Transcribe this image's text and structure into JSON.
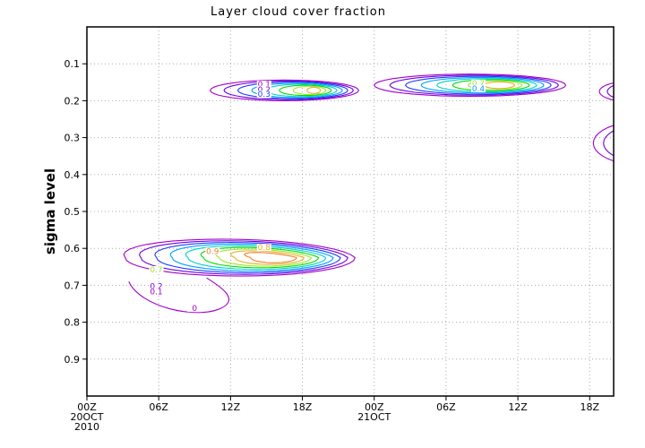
{
  "chart_data": {
    "type": "contour",
    "title": "Layer cloud cover fraction",
    "xlabel": "",
    "ylabel": "sigma level",
    "x_ticks": [
      {
        "hour": 0,
        "label": "00Z",
        "sub": [
          "20OCT",
          "2010"
        ]
      },
      {
        "hour": 6,
        "label": "06Z",
        "sub": []
      },
      {
        "hour": 12,
        "label": "12Z",
        "sub": []
      },
      {
        "hour": 18,
        "label": "18Z",
        "sub": []
      },
      {
        "hour": 24,
        "label": "00Z",
        "sub": [
          "21OCT"
        ]
      },
      {
        "hour": 30,
        "label": "06Z",
        "sub": []
      },
      {
        "hour": 36,
        "label": "12Z",
        "sub": []
      },
      {
        "hour": 42,
        "label": "18Z",
        "sub": []
      }
    ],
    "xlim_hours": [
      0,
      44
    ],
    "y_ticks": [
      "0.1",
      "0.2",
      "0.3",
      "0.4",
      "0.5",
      "0.6",
      "0.7",
      "0.8",
      "0.9"
    ],
    "ylim": [
      1.0,
      0.0
    ],
    "grid": true,
    "contour_levels": [
      0.1,
      0.2,
      0.3,
      0.4,
      0.5,
      0.6,
      0.7,
      0.8,
      0.9
    ],
    "level_colors": [
      "#a000c8",
      "#6e00dc",
      "#1e3cff",
      "#00a0ff",
      "#00d2c8",
      "#00dc00",
      "#a0e632",
      "#e6af2d",
      "#f0822a"
    ],
    "contour_labels": [
      {
        "text": "0.1",
        "hour": 14.8,
        "sigma": 0.158,
        "color": "#a000c8"
      },
      {
        "text": "0.2",
        "hour": 14.8,
        "sigma": 0.172,
        "color": "#6e00dc"
      },
      {
        "text": "0.3",
        "hour": 14.8,
        "sigma": 0.185,
        "color": "#1e3cff"
      },
      {
        "text": "0.7",
        "hour": 32.7,
        "sigma": 0.155,
        "color": "#a0e632"
      },
      {
        "text": "0.4",
        "hour": 32.7,
        "sigma": 0.17,
        "color": "#00a0ff"
      },
      {
        "text": "0.9",
        "hour": 10.5,
        "sigma": 0.61,
        "color": "#f0822a"
      },
      {
        "text": "0.8",
        "hour": 14.8,
        "sigma": 0.6,
        "color": "#e6af2d"
      },
      {
        "text": "0.7",
        "hour": 5.8,
        "sigma": 0.66,
        "color": "#a0e632"
      },
      {
        "text": "0.2",
        "hour": 5.8,
        "sigma": 0.705,
        "color": "#6e00dc"
      },
      {
        "text": "0.1",
        "hour": 5.8,
        "sigma": 0.72,
        "color": "#a000c8"
      },
      {
        "text": "0",
        "hour": 9,
        "sigma": 0.765,
        "color": "#a000c8"
      }
    ]
  }
}
